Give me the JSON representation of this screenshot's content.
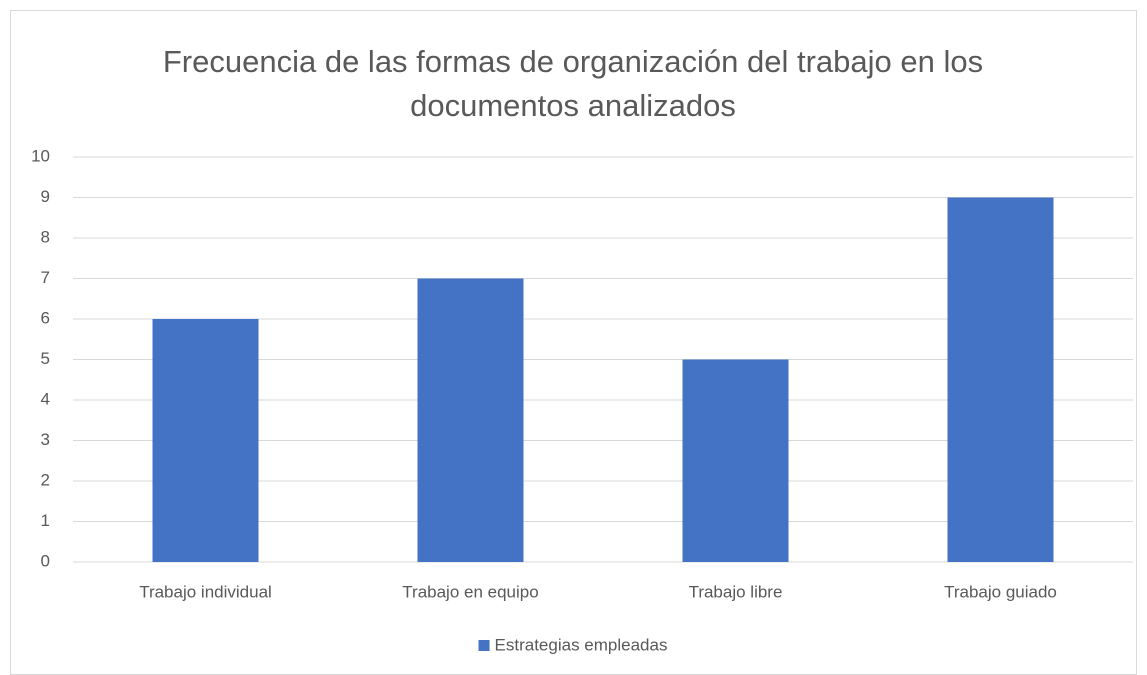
{
  "chart_data": {
    "type": "bar",
    "title": "Frecuencia de las formas de organización del trabajo en los documentos analizados",
    "categories": [
      "Trabajo individual",
      "Trabajo en equipo",
      "Trabajo libre",
      "Trabajo guiado"
    ],
    "series": [
      {
        "name": "Estrategias empleadas",
        "color": "#4472c4",
        "values": [
          6,
          7,
          5,
          9
        ]
      }
    ],
    "ylim": [
      0,
      10
    ],
    "yticks": [
      0,
      1,
      2,
      3,
      4,
      5,
      6,
      7,
      8,
      9,
      10
    ],
    "grid": true,
    "legend": "bottom"
  }
}
